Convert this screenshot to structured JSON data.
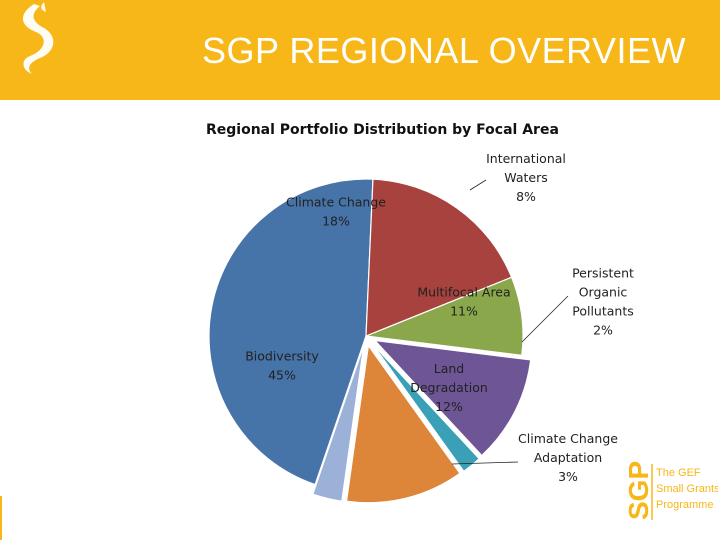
{
  "page": {
    "title": "SGP REGIONAL OVERVIEW",
    "brand_color": "#f7b718"
  },
  "logo": {
    "acronym": "SGP",
    "line1": "The GEF",
    "line2": "Small Grants",
    "line3": "Programme"
  },
  "chart_data": {
    "type": "pie",
    "title": "Regional Portfolio Distribution by Focal Area",
    "slices": [
      {
        "label": "International Waters",
        "value": 8,
        "display": "8%",
        "color": "#8aa84b"
      },
      {
        "label": "Multifocal Area",
        "value": 11,
        "display": "11%",
        "color": "#6e5596"
      },
      {
        "label": "Persistent Organic Pollutants",
        "value": 2,
        "display": "2%",
        "color": "#3aa0b8"
      },
      {
        "label": "Land Degradation",
        "value": 12,
        "display": "12%",
        "color": "#dd8538"
      },
      {
        "label": "Climate Change Adaptation",
        "value": 3,
        "display": "3%",
        "color": "#9bb1d8"
      },
      {
        "label": "Biodiversity",
        "value": 45,
        "display": "45%",
        "color": "#4673a8"
      },
      {
        "label": "Climate Change",
        "value": 18,
        "display": "18%",
        "color": "#a8423f"
      }
    ],
    "label_lines": {
      "International Waters": [
        "International",
        "Waters"
      ],
      "Multifocal Area": [
        "Multifocal Area"
      ],
      "Persistent Organic Pollutants": [
        "Persistent",
        "Organic",
        "Pollutants"
      ],
      "Land Degradation": [
        "Land",
        "Degradation"
      ],
      "Climate Change Adaptation": [
        "Climate Change",
        "Adaptation"
      ],
      "Biodiversity": [
        "Biodiversity"
      ],
      "Climate Change": [
        "Climate Change"
      ]
    }
  }
}
